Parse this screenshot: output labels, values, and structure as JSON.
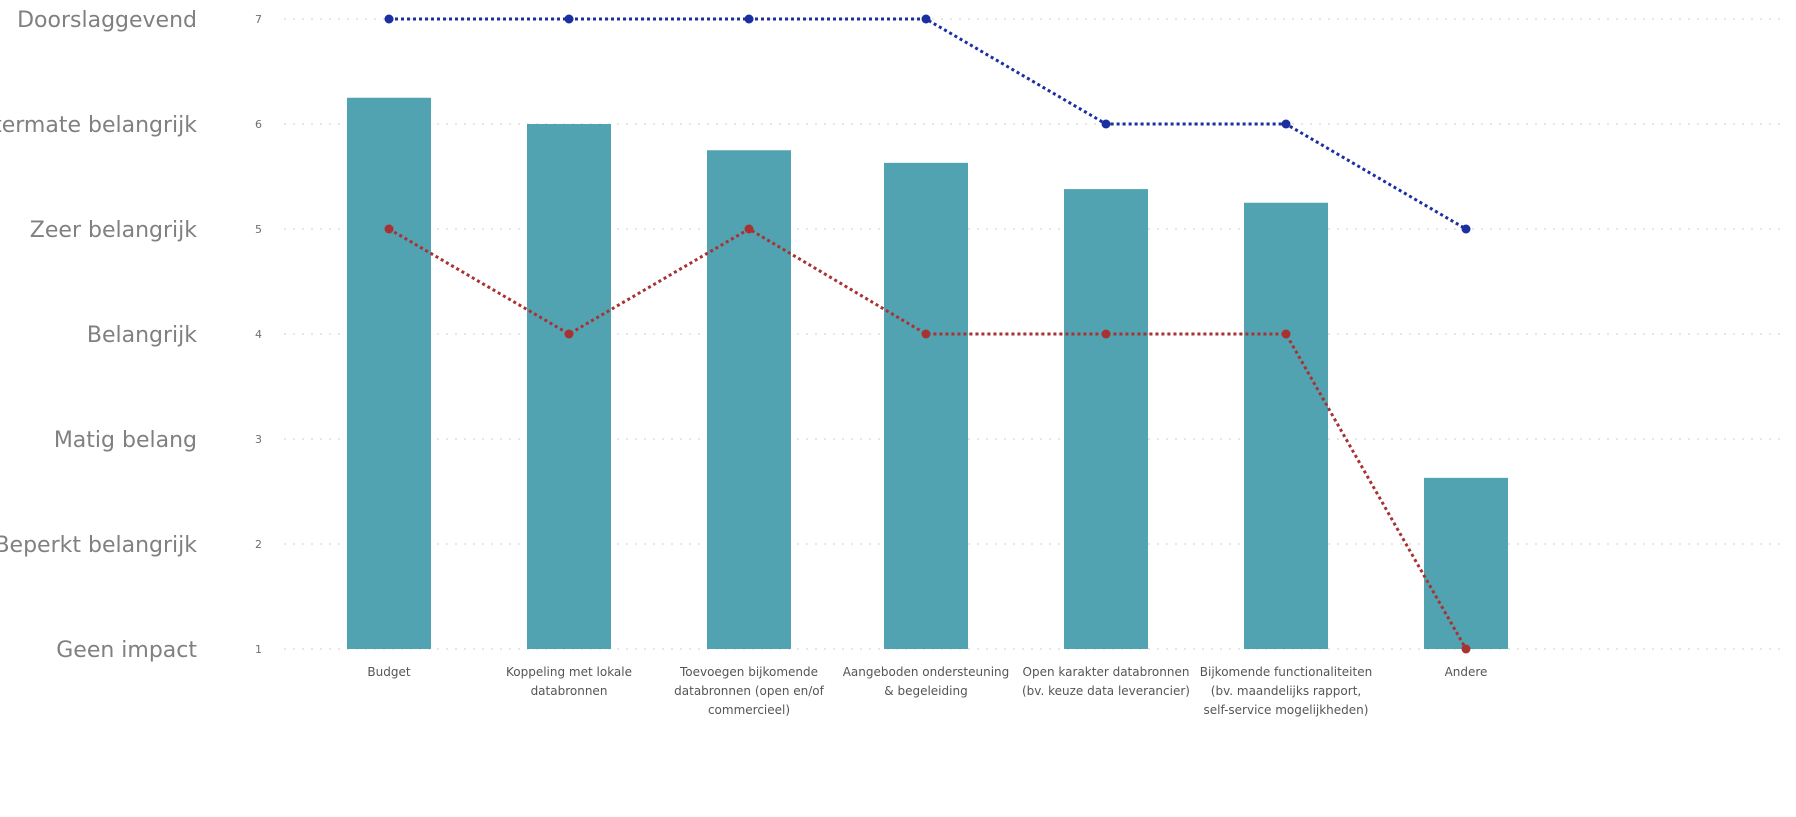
{
  "chart_data": {
    "type": "bar",
    "categories": [
      [
        "Budget"
      ],
      [
        "Koppeling met lokale",
        "databronnen"
      ],
      [
        "Toevoegen bijkomende",
        "databronnen (open en/of",
        "commercieel)"
      ],
      [
        "Aangeboden ondersteuning",
        "& begeleiding"
      ],
      [
        "Open karakter databronnen",
        "(bv. keuze data leverancier)"
      ],
      [
        "Bijkomende functionaliteiten",
        "(bv. maandelijks rapport,",
        "self-service mogelijkheden)"
      ],
      [
        "Andere"
      ]
    ],
    "bars": {
      "color": "#52a3b2",
      "values": [
        6.25,
        6.0,
        5.75,
        5.63,
        5.38,
        5.25,
        2.63
      ]
    },
    "lines": [
      {
        "color": "#1a2fa0",
        "values": [
          7,
          7,
          7,
          7,
          6,
          6,
          5
        ]
      },
      {
        "color": "#a83232",
        "values": [
          5,
          4,
          5,
          4,
          4,
          4,
          1
        ]
      }
    ],
    "ylim": [
      1,
      7
    ],
    "yticks": [
      "1",
      "2",
      "3",
      "4",
      "5",
      "6",
      "7"
    ],
    "scale_labels": [
      "Geen impact",
      "Beperkt belangrijk",
      "Matig belang",
      "Belangrijk",
      "Zeer belangrijk",
      "Uitermate belangrijk",
      "Doorslaggevend"
    ],
    "grid": true,
    "legend": "none"
  }
}
